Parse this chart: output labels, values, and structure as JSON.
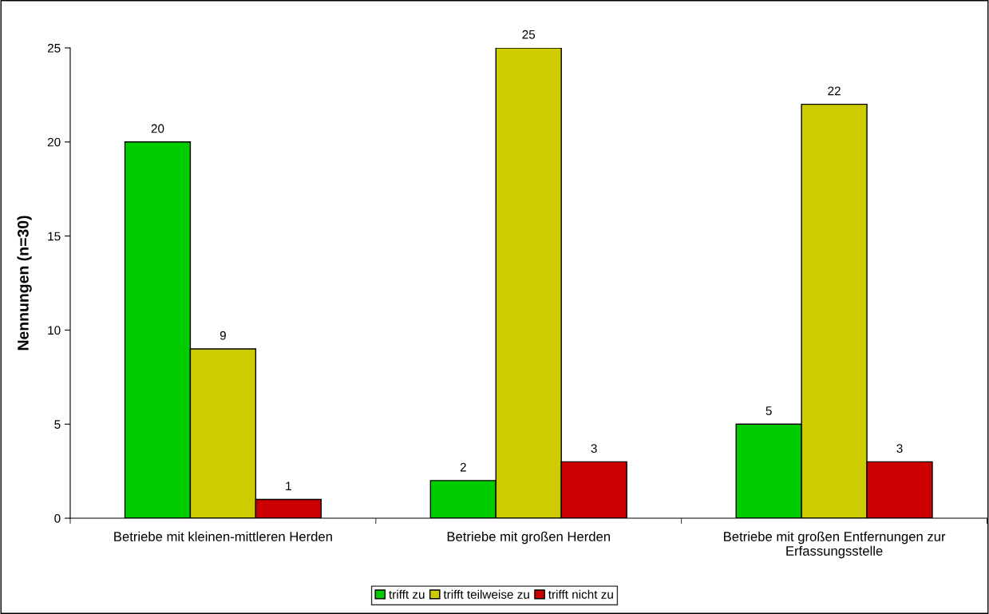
{
  "chart_data": {
    "type": "bar",
    "ylabel": "Nennungen (n=30)",
    "categories": [
      "Betriebe mit kleinen-mittleren Herden",
      "Betriebe mit großen Herden",
      "Betriebe mit großen Entfernungen zur\nErfassungsstelle"
    ],
    "series": [
      {
        "name": "trifft zu",
        "color": "#00cc00",
        "values": [
          20,
          2,
          5
        ]
      },
      {
        "name": "trifft teilweise zu",
        "color": "#cccc00",
        "values": [
          9,
          25,
          22
        ]
      },
      {
        "name": "trifft nicht zu",
        "color": "#cc0000",
        "values": [
          1,
          3,
          3
        ]
      }
    ],
    "ylim": [
      0,
      25
    ],
    "yticks": [
      0,
      5,
      10,
      15,
      20,
      25
    ],
    "grid": false,
    "legend": "bottom",
    "data_labels": true
  }
}
